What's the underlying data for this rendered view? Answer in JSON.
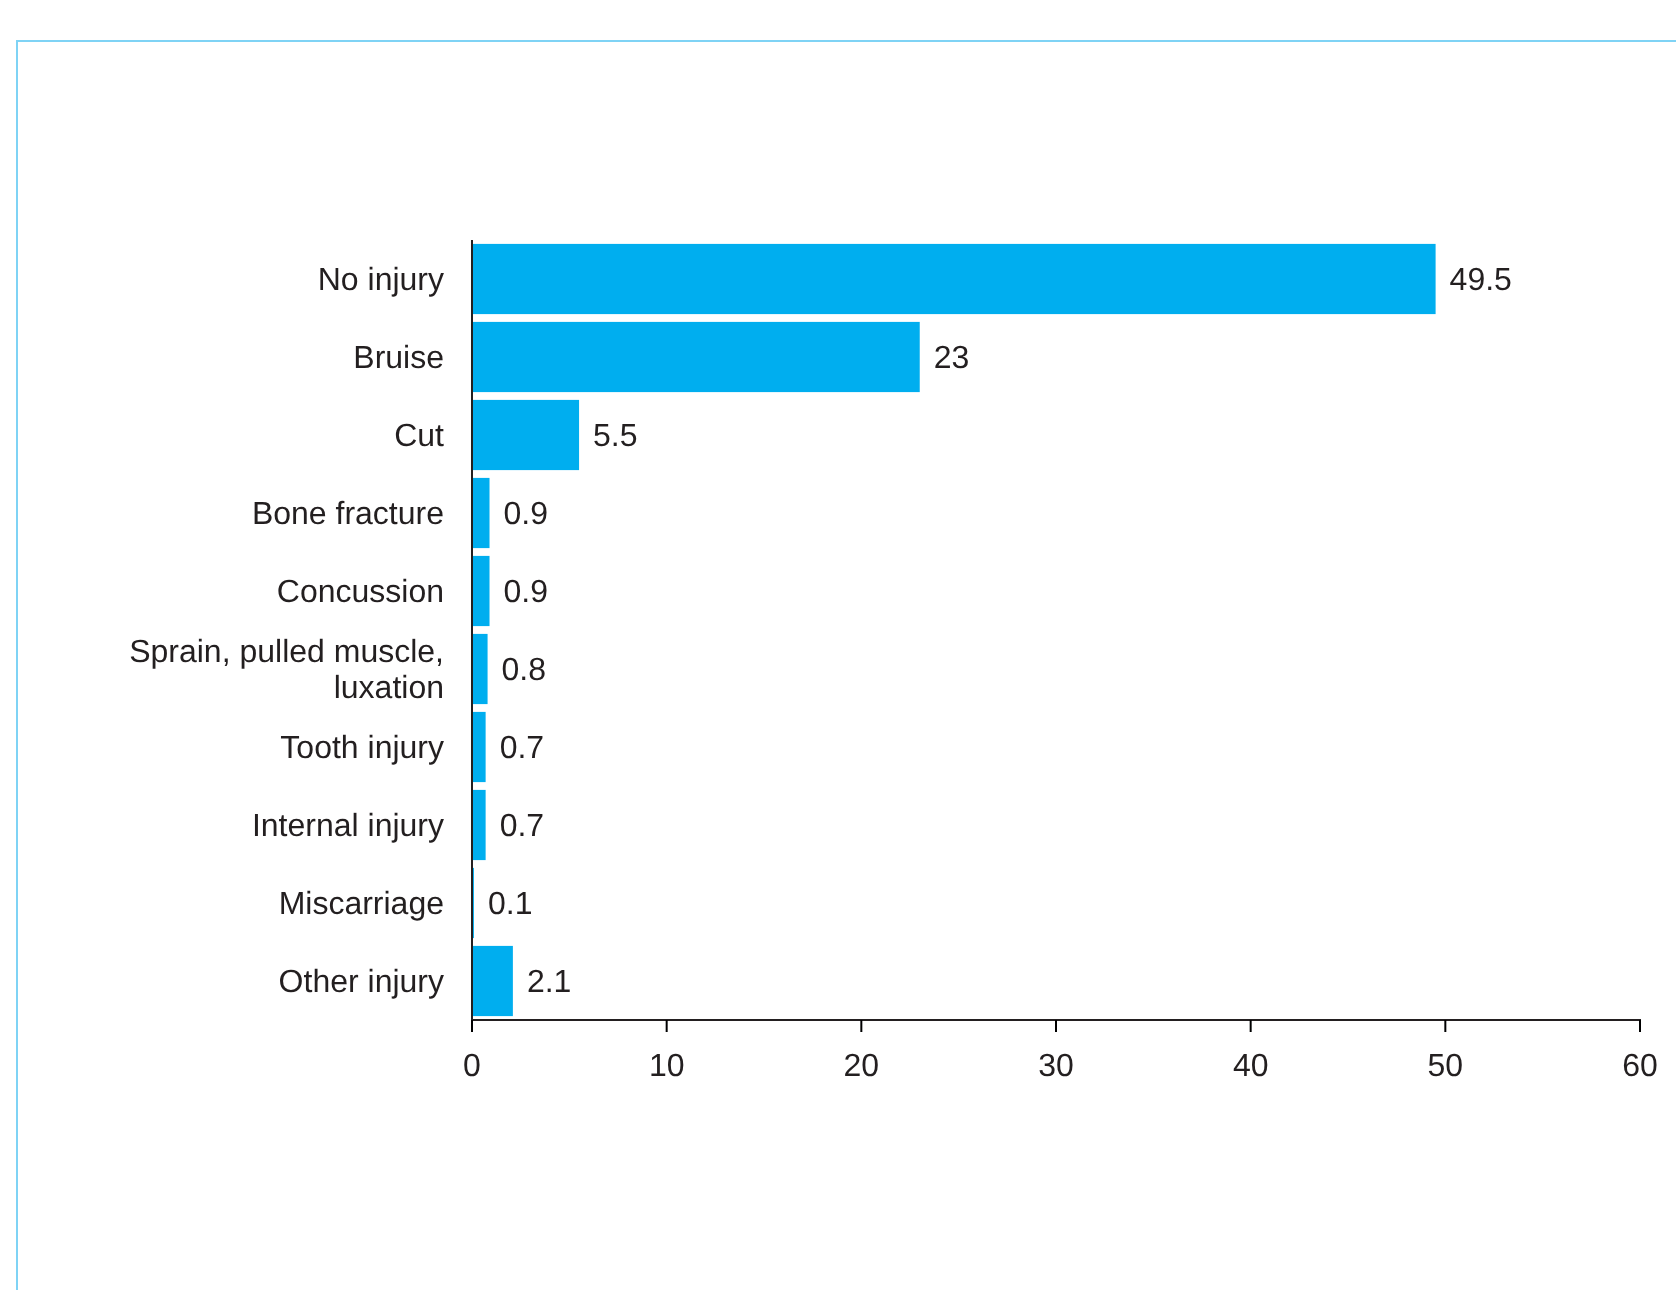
{
  "chart_data": {
    "type": "bar",
    "orientation": "horizontal",
    "categories": [
      "No injury",
      "Bruise",
      "Cut",
      "Bone fracture",
      "Concussion",
      "Sprain, pulled muscle, luxation",
      "Tooth injury",
      "Internal injury",
      "Miscarriage",
      "Other injury"
    ],
    "values": [
      49.5,
      23,
      5.5,
      0.9,
      0.9,
      0.8,
      0.7,
      0.7,
      0.1,
      2.1
    ],
    "color": "#00aeef",
    "xlim": [
      0,
      60
    ],
    "xticks": [
      0,
      10,
      20,
      30,
      40,
      50,
      60
    ],
    "data_labels": true,
    "grid": false
  }
}
